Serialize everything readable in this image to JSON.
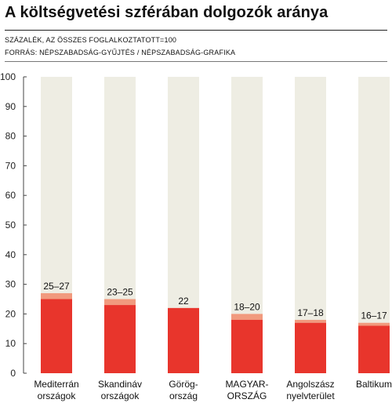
{
  "header": {
    "title": "A költségvetési szférában dolgozók aránya",
    "subtitle_1": "SZÁZALÉK, AZ ÖSSZES FOGLALKOZTATOTT=100",
    "subtitle_2": "FORRÁS: NÉPSZABADSÁG-GYŰJTÉS / NÉPSZABADSÁG-GRAFIKA"
  },
  "colors": {
    "background_bar": "#eeede3",
    "lower_value": "#e8352c",
    "range": "#f19a7e",
    "axis": "#444444"
  },
  "chart_data": {
    "type": "bar",
    "title": "A költségvetési szférában dolgozók aránya",
    "ylabel": "SZÁZALÉK, AZ ÖSSZES FOGLALKOZTATOTT=100",
    "ylim": [
      0,
      100
    ],
    "yticks": [
      0,
      10,
      20,
      30,
      40,
      50,
      60,
      70,
      80,
      90,
      100
    ],
    "grid": false,
    "categories": [
      [
        "Mediterrán",
        "országok"
      ],
      [
        "Skandináv",
        "országok"
      ],
      [
        "Görög-",
        "ország"
      ],
      [
        "MAGYAR-",
        "ORSZÁG"
      ],
      [
        "Angolszász",
        "nyelvterület"
      ],
      [
        "Baltikum"
      ]
    ],
    "total": [
      100,
      100,
      100,
      100,
      100,
      100
    ],
    "low": [
      25,
      23,
      22,
      18,
      17,
      16
    ],
    "high": [
      27,
      25,
      22,
      20,
      18,
      17
    ],
    "value_labels": [
      "25–27",
      "23–25",
      "22",
      "18–20",
      "17–18",
      "16–17"
    ]
  }
}
